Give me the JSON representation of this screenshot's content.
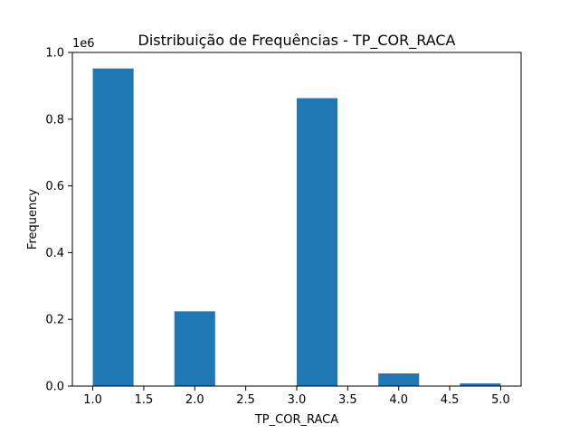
{
  "chart_data": {
    "type": "bar",
    "title": "Distribuição de Frequências - TP_COR_RACA",
    "xlabel": "TP_COR_RACA",
    "ylabel": "Frequency",
    "y_scale_label": "1e6",
    "xlim": [
      0.8,
      5.2
    ],
    "ylim": [
      0,
      1.0
    ],
    "x_ticks": [
      1.0,
      1.5,
      2.0,
      2.5,
      3.0,
      3.5,
      4.0,
      4.5,
      5.0
    ],
    "x_tick_labels": [
      "1.0",
      "1.5",
      "2.0",
      "2.5",
      "3.0",
      "3.5",
      "4.0",
      "4.5",
      "5.0"
    ],
    "y_ticks": [
      0.0,
      0.2,
      0.4,
      0.6,
      0.8,
      1.0
    ],
    "y_tick_labels": [
      "0.0",
      "0.2",
      "0.4",
      "0.6",
      "0.8",
      "1.0"
    ],
    "bars": [
      {
        "x_start": 1.0,
        "x_end": 1.4,
        "value": 0.952
      },
      {
        "x_start": 1.4,
        "x_end": 1.8,
        "value": 0.0
      },
      {
        "x_start": 1.8,
        "x_end": 2.2,
        "value": 0.224
      },
      {
        "x_start": 2.2,
        "x_end": 2.6,
        "value": 0.0
      },
      {
        "x_start": 2.6,
        "x_end": 3.0,
        "value": 0.0
      },
      {
        "x_start": 3.0,
        "x_end": 3.4,
        "value": 0.863
      },
      {
        "x_start": 3.4,
        "x_end": 3.8,
        "value": 0.0
      },
      {
        "x_start": 3.8,
        "x_end": 4.2,
        "value": 0.038
      },
      {
        "x_start": 4.2,
        "x_end": 4.6,
        "value": 0.0
      },
      {
        "x_start": 4.6,
        "x_end": 5.0,
        "value": 0.008
      }
    ],
    "bar_color": "#1f77b4",
    "grid": false,
    "legend": "none"
  }
}
